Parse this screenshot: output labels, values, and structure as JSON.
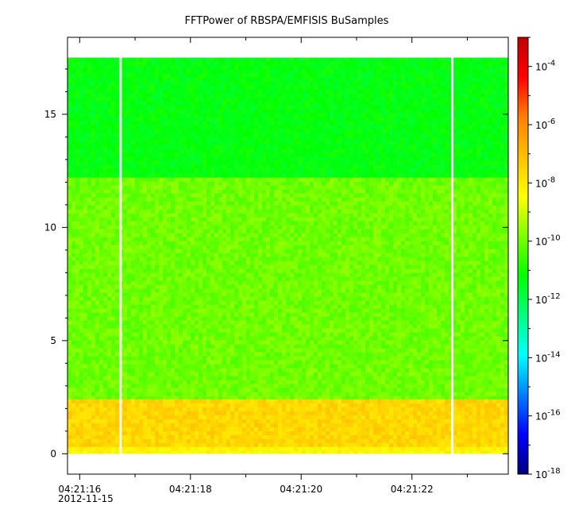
{
  "chart_data": {
    "type": "heatmap",
    "title": "FFTPower of RBSPA/EMFISIS  BuSamples",
    "xlabel": "",
    "ylabel": "",
    "x_ticks": [
      {
        "t": 16.0,
        "label": "04:21:16"
      },
      {
        "t": 18.0,
        "label": "04:21:18"
      },
      {
        "t": 20.0,
        "label": "04:21:20"
      },
      {
        "t": 22.0,
        "label": "04:21:22"
      }
    ],
    "x_minor_ticks": [
      17.0,
      19.0,
      21.0,
      23.0
    ],
    "date_label": "2012-11-15",
    "xlim": [
      "04:21:15.78",
      "04:21:23.74"
    ],
    "y_ticks": [
      0,
      5,
      10,
      15
    ],
    "ylim": [
      -0.9,
      18.4
    ],
    "data_extent": {
      "x": [
        "04:21:15.78",
        "04:21:23.74"
      ],
      "y": [
        0,
        17.5
      ]
    },
    "gaps": [
      {
        "start": "04:21:16.72",
        "end": "04:21:16.76"
      },
      {
        "start": "04:21:22.71",
        "end": "04:21:22.75"
      }
    ],
    "bands": [
      {
        "y": [
          0.0,
          0.3
        ],
        "log10_power": -8.3
      },
      {
        "y": [
          0.3,
          2.4
        ],
        "log10_power": -7.6
      },
      {
        "y": [
          2.4,
          12.2
        ],
        "log10_power": -10.0
      },
      {
        "y": [
          12.2,
          17.5
        ],
        "log10_power": -11.3
      }
    ],
    "colorbar": {
      "scale": "log",
      "range": [
        1e-18,
        0.001
      ],
      "ticks": [
        {
          "exp": -4,
          "base": "10",
          "sup": "-4"
        },
        {
          "exp": -6,
          "base": "10",
          "sup": "-6"
        },
        {
          "exp": -8,
          "base": "10",
          "sup": "-8"
        },
        {
          "exp": -10,
          "base": "10",
          "sup": "-10"
        },
        {
          "exp": -12,
          "base": "10",
          "sup": "-12"
        },
        {
          "exp": -14,
          "base": "10",
          "sup": "-14"
        },
        {
          "exp": -16,
          "base": "10",
          "sup": "-16"
        },
        {
          "exp": -18,
          "base": "10",
          "sup": "-18"
        }
      ],
      "colormap": [
        "#00007f",
        "#0000ff",
        "#007fff",
        "#00ffff",
        "#00ff7f",
        "#00ff00",
        "#7fff00",
        "#ffff00",
        "#ffbf00",
        "#ff7f00",
        "#ff0000",
        "#bf0000"
      ]
    }
  }
}
